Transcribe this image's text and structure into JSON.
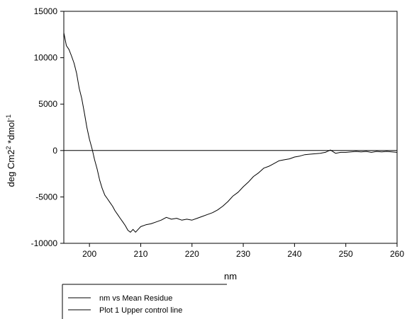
{
  "chart_data": {
    "type": "line",
    "title": "",
    "xlabel": "nm",
    "ylabel_main": "deg Cm2",
    "ylabel_sup1": "2",
    "ylabel_mid": " *dmol",
    "ylabel_sup2": "-1",
    "xlim": [
      195,
      260
    ],
    "ylim": [
      -10000,
      15000
    ],
    "x_ticks": [
      200,
      210,
      220,
      230,
      240,
      250,
      260
    ],
    "y_ticks": [
      -10000,
      -5000,
      0,
      5000,
      10000,
      15000
    ],
    "x_tick_labels": [
      "200",
      "210",
      "220",
      "230",
      "240",
      "250",
      "260"
    ],
    "y_tick_labels": [
      "-10000",
      "-5000",
      "0",
      "5000",
      "10000",
      "15000"
    ],
    "grid": false,
    "legend_position": "bottom-left (below plot)",
    "line_color": "#000000",
    "series": [
      {
        "name": "nm vs Mean Residue",
        "x": [
          195,
          195.5,
          196,
          196.5,
          197,
          197.5,
          198,
          198.5,
          199,
          199.5,
          200,
          200.5,
          201,
          201.5,
          202,
          202.5,
          203,
          203.5,
          204,
          204.5,
          205,
          205.5,
          206,
          206.5,
          207,
          207.5,
          208,
          208.5,
          209,
          209.5,
          210,
          211,
          212,
          213,
          214,
          215,
          216,
          217,
          218,
          219,
          220,
          221,
          222,
          223,
          224,
          225,
          226,
          227,
          228,
          229,
          230,
          231,
          232,
          233,
          234,
          235,
          236,
          237,
          238,
          239,
          240,
          241,
          242,
          243,
          244,
          245,
          246,
          247,
          248,
          249,
          250,
          251,
          252,
          253,
          254,
          255,
          256,
          257,
          258,
          259,
          260
        ],
        "values": [
          12700,
          11300,
          10900,
          10200,
          9400,
          8300,
          6700,
          5600,
          4100,
          2500,
          1200,
          200,
          -1000,
          -2000,
          -3200,
          -4100,
          -4800,
          -5200,
          -5600,
          -6000,
          -6500,
          -6900,
          -7300,
          -7700,
          -8100,
          -8600,
          -8800,
          -8500,
          -8800,
          -8500,
          -8200,
          -8000,
          -7900,
          -7700,
          -7500,
          -7200,
          -7400,
          -7300,
          -7500,
          -7400,
          -7500,
          -7300,
          -7100,
          -6900,
          -6700,
          -6400,
          -6000,
          -5500,
          -4900,
          -4500,
          -3900,
          -3400,
          -2800,
          -2400,
          -1900,
          -1700,
          -1400,
          -1100,
          -1000,
          -900,
          -700,
          -600,
          -450,
          -400,
          -350,
          -300,
          -200,
          50,
          -300,
          -200,
          -200,
          -150,
          -100,
          -150,
          -100,
          -200,
          -100,
          -150,
          -100,
          -150,
          -200
        ]
      },
      {
        "name": "Plot 1 Upper control line",
        "x": [
          195,
          260
        ],
        "values": [
          0,
          0
        ]
      }
    ]
  }
}
